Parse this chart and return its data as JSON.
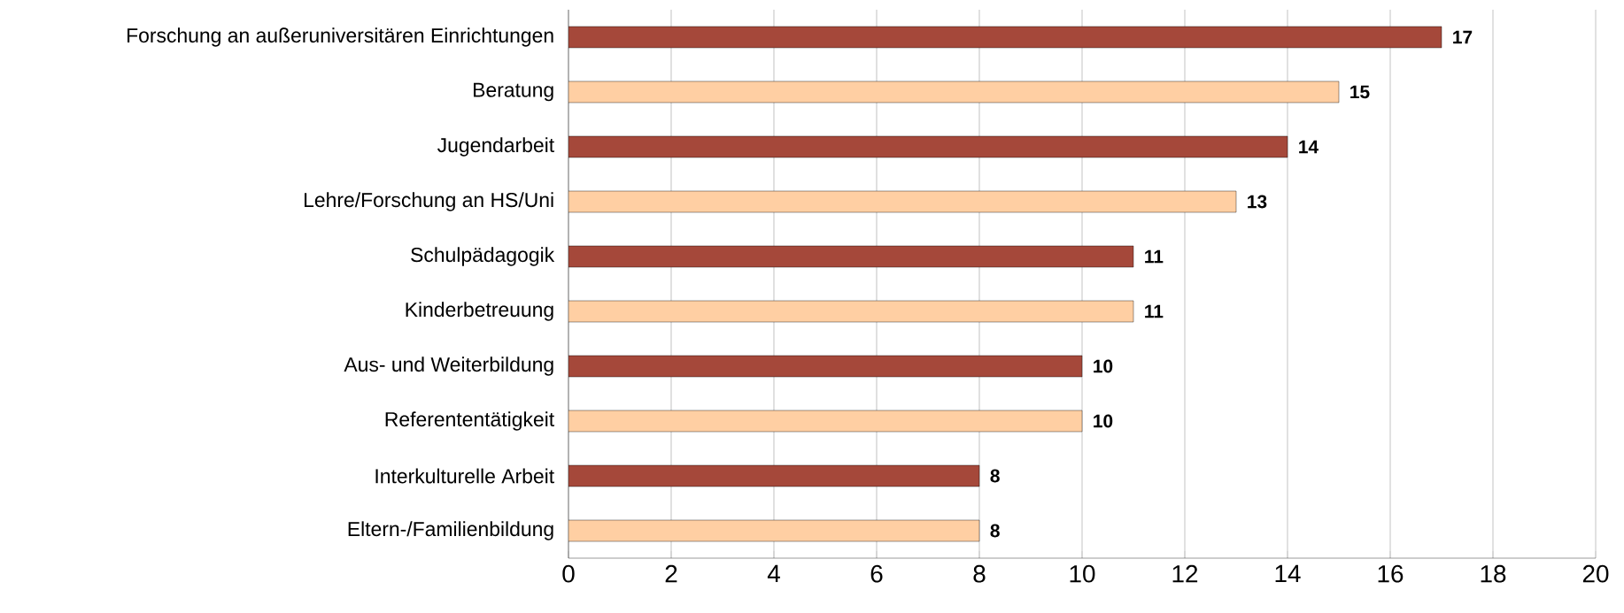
{
  "chart_data": {
    "type": "bar",
    "orientation": "horizontal",
    "categories": [
      "Forschung an außeruniversitären Einrichtungen",
      "Beratung",
      "Jugendarbeit",
      "Lehre/Forschung an HS/Uni",
      "Schulpädagogik",
      "Kinderbetreuung",
      "Aus- und Weiterbildung",
      "Referententätigkeit",
      "Interkulturelle Arbeit",
      "Eltern-/Familienbildung"
    ],
    "values": [
      17,
      15,
      14,
      13,
      11,
      11,
      10,
      10,
      8,
      8
    ],
    "colors": [
      "#a5483a",
      "#ffcfa3",
      "#a5483a",
      "#ffcfa3",
      "#a5483a",
      "#ffcfa3",
      "#a5483a",
      "#ffcfa3",
      "#a5483a",
      "#ffcfa3"
    ],
    "xlim": [
      0,
      20
    ],
    "xticks": [
      0,
      2,
      4,
      6,
      8,
      10,
      12,
      14,
      16,
      18,
      20
    ],
    "grid": "x",
    "data_labels": true
  }
}
